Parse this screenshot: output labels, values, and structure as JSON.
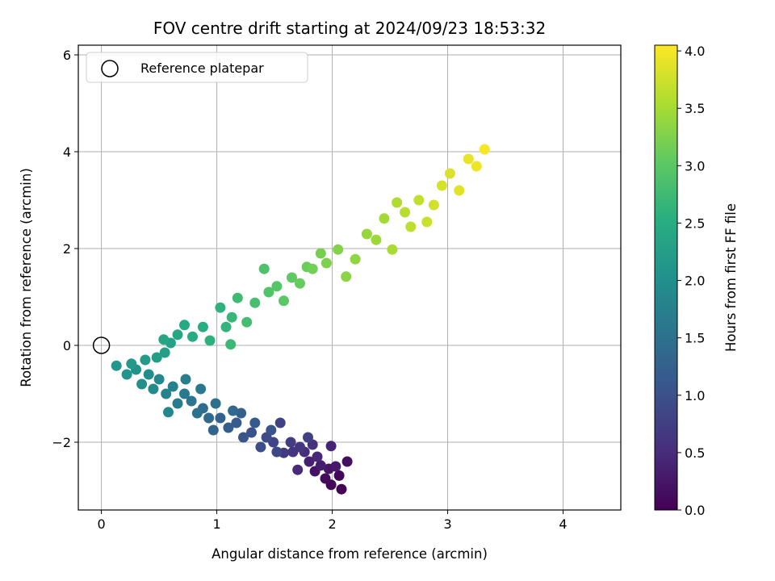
{
  "chart_data": {
    "type": "scatter",
    "title": "FOV centre drift starting at 2024/09/23 18:53:32",
    "xlabel": "Angular distance from reference (arcmin)",
    "ylabel": "Rotation from reference (arcmin)",
    "xlim": [
      -0.2,
      4.5
    ],
    "ylim": [
      -3.4,
      6.2
    ],
    "xticks": [
      0,
      1,
      2,
      3,
      4
    ],
    "yticks": [
      -2,
      0,
      2,
      4,
      6
    ],
    "xtick_labels": [
      "0",
      "1",
      "2",
      "3",
      "4"
    ],
    "ytick_labels": [
      "−2",
      "0",
      "2",
      "4",
      "6"
    ],
    "grid": true,
    "legend": {
      "position": "top-left",
      "entries": [
        "Reference platepar"
      ]
    },
    "reference_point": {
      "x": 0,
      "y": 0,
      "label": "Reference platepar"
    },
    "colorbar": {
      "label": "Hours from first FF file",
      "range": [
        0.0,
        4.05
      ],
      "ticks": [
        0.0,
        0.5,
        1.0,
        1.5,
        2.0,
        2.5,
        3.0,
        3.5,
        4.0
      ],
      "tick_labels": [
        "0.0",
        "0.5",
        "1.0",
        "1.5",
        "2.0",
        "2.5",
        "3.0",
        "3.5",
        "4.0"
      ],
      "colormap": "viridis"
    },
    "points": [
      [
        2.08,
        -2.97,
        0.0
      ],
      [
        1.99,
        -2.88,
        0.04
      ],
      [
        2.06,
        -2.69,
        0.08
      ],
      [
        1.94,
        -2.75,
        0.12
      ],
      [
        2.13,
        -2.4,
        0.16
      ],
      [
        1.85,
        -2.6,
        0.2
      ],
      [
        1.97,
        -2.55,
        0.24
      ],
      [
        2.03,
        -2.5,
        0.28
      ],
      [
        1.9,
        -2.48,
        0.32
      ],
      [
        1.8,
        -2.4,
        0.36
      ],
      [
        1.99,
        -2.08,
        0.4
      ],
      [
        1.87,
        -2.3,
        0.44
      ],
      [
        1.7,
        -2.57,
        0.48
      ],
      [
        1.76,
        -2.2,
        0.52
      ],
      [
        1.83,
        -2.05,
        0.56
      ],
      [
        1.66,
        -2.2,
        0.6
      ],
      [
        1.72,
        -2.1,
        0.64
      ],
      [
        1.58,
        -2.22,
        0.68
      ],
      [
        1.64,
        -2.0,
        0.72
      ],
      [
        1.79,
        -1.9,
        0.76
      ],
      [
        1.55,
        -1.6,
        0.8
      ],
      [
        1.49,
        -2.0,
        0.84
      ],
      [
        1.52,
        -2.2,
        0.88
      ],
      [
        1.43,
        -1.9,
        0.92
      ],
      [
        1.38,
        -2.1,
        0.96
      ],
      [
        1.3,
        -1.8,
        1.0
      ],
      [
        1.47,
        -1.75,
        1.04
      ],
      [
        1.23,
        -1.9,
        1.08
      ],
      [
        1.33,
        -1.6,
        1.12
      ],
      [
        1.17,
        -1.6,
        1.16
      ],
      [
        1.1,
        -1.7,
        1.2
      ],
      [
        1.21,
        -1.4,
        1.24
      ],
      [
        1.03,
        -1.5,
        1.28
      ],
      [
        0.97,
        -1.75,
        1.32
      ],
      [
        1.14,
        -1.35,
        1.36
      ],
      [
        0.93,
        -1.5,
        1.4
      ],
      [
        0.88,
        -1.3,
        1.44
      ],
      [
        0.99,
        -1.2,
        1.48
      ],
      [
        0.83,
        -1.4,
        1.52
      ],
      [
        0.78,
        -1.15,
        1.56
      ],
      [
        0.86,
        -0.9,
        1.6
      ],
      [
        0.72,
        -1.0,
        1.64
      ],
      [
        0.66,
        -1.2,
        1.68
      ],
      [
        0.73,
        -0.7,
        1.72
      ],
      [
        0.62,
        -0.85,
        1.76
      ],
      [
        0.56,
        -1.0,
        1.8
      ],
      [
        0.58,
        -1.38,
        1.84
      ],
      [
        0.5,
        -0.7,
        1.88
      ],
      [
        0.45,
        -0.9,
        1.92
      ],
      [
        0.41,
        -0.6,
        1.96
      ],
      [
        0.35,
        -0.8,
        2.0
      ],
      [
        0.3,
        -0.5,
        2.04
      ],
      [
        0.22,
        -0.6,
        2.08
      ],
      [
        0.13,
        -0.42,
        2.12
      ],
      [
        0.26,
        -0.38,
        2.16
      ],
      [
        0.38,
        -0.3,
        2.2
      ],
      [
        0.48,
        -0.25,
        2.24
      ],
      [
        0.55,
        -0.15,
        2.28
      ],
      [
        0.6,
        0.05,
        2.32
      ],
      [
        0.54,
        0.12,
        2.36
      ],
      [
        0.66,
        0.22,
        2.4
      ],
      [
        0.72,
        0.42,
        2.44
      ],
      [
        0.79,
        0.18,
        2.48
      ],
      [
        0.88,
        0.38,
        2.52
      ],
      [
        0.94,
        0.1,
        2.56
      ],
      [
        1.03,
        0.78,
        2.6
      ],
      [
        1.08,
        0.38,
        2.64
      ],
      [
        1.13,
        0.58,
        2.68
      ],
      [
        1.12,
        0.02,
        2.72
      ],
      [
        1.18,
        0.98,
        2.76
      ],
      [
        1.26,
        0.48,
        2.8
      ],
      [
        1.33,
        0.88,
        2.84
      ],
      [
        1.41,
        1.58,
        2.88
      ],
      [
        1.45,
        1.1,
        2.92
      ],
      [
        1.52,
        1.22,
        2.96
      ],
      [
        1.58,
        0.92,
        3.0
      ],
      [
        1.65,
        1.4,
        3.04
      ],
      [
        1.72,
        1.28,
        3.08
      ],
      [
        1.78,
        1.62,
        3.12
      ],
      [
        1.83,
        1.58,
        3.16
      ],
      [
        1.9,
        1.9,
        3.2
      ],
      [
        1.95,
        1.7,
        3.24
      ],
      [
        2.05,
        1.98,
        3.28
      ],
      [
        2.12,
        1.42,
        3.32
      ],
      [
        2.2,
        1.78,
        3.36
      ],
      [
        2.3,
        2.3,
        3.4
      ],
      [
        2.38,
        2.18,
        3.44
      ],
      [
        2.45,
        2.62,
        3.48
      ],
      [
        2.52,
        1.98,
        3.52
      ],
      [
        2.56,
        2.95,
        3.56
      ],
      [
        2.63,
        2.75,
        3.6
      ],
      [
        2.68,
        2.45,
        3.64
      ],
      [
        2.75,
        3.0,
        3.68
      ],
      [
        2.82,
        2.55,
        3.72
      ],
      [
        2.88,
        2.9,
        3.76
      ],
      [
        2.95,
        3.3,
        3.8
      ],
      [
        3.02,
        3.55,
        3.84
      ],
      [
        3.1,
        3.2,
        3.88
      ],
      [
        3.18,
        3.85,
        3.92
      ],
      [
        3.25,
        3.7,
        3.96
      ],
      [
        3.32,
        4.05,
        4.0
      ]
    ]
  }
}
